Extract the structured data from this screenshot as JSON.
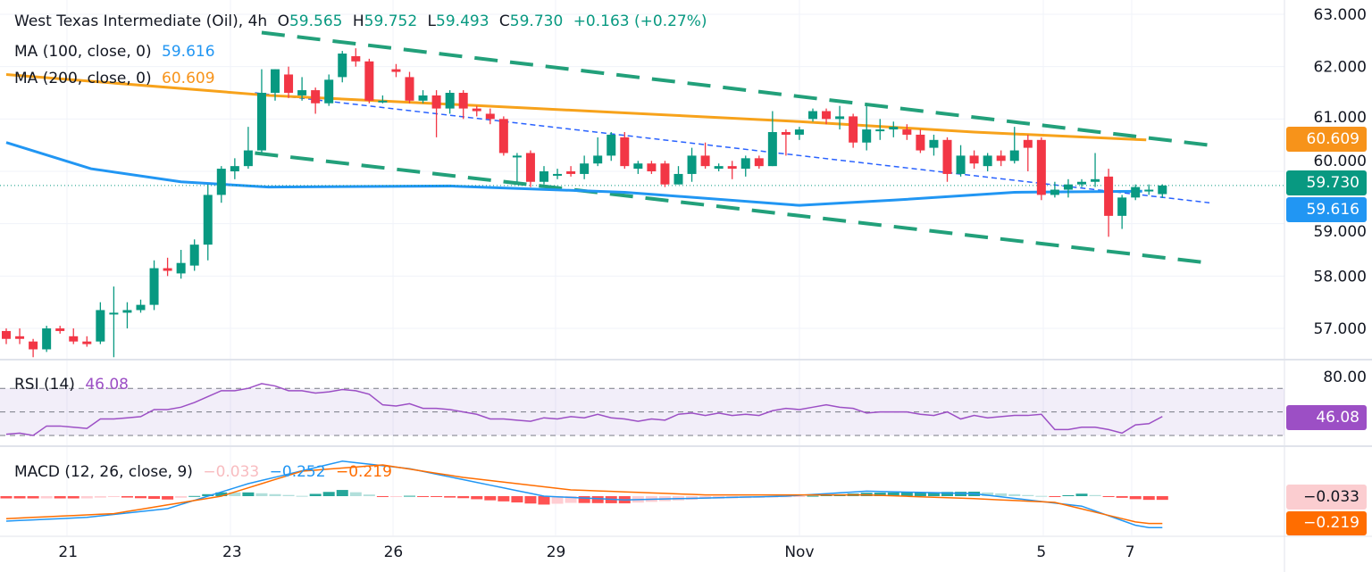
{
  "header": {
    "symbol": "West Texas Intermediate (Oil), 4h",
    "o_label": "O",
    "o": "59.565",
    "h_label": "H",
    "h": "59.752",
    "l_label": "L",
    "l": "59.493",
    "c_label": "C",
    "c": "59.730",
    "change": "+0.163 (+0.27%)"
  },
  "ma100": {
    "label": "MA (100, close, 0)",
    "value": "59.616",
    "color": "#2196f3"
  },
  "ma200": {
    "label": "MA (200, close, 0)",
    "value": "60.609",
    "color": "#ff9800"
  },
  "rsi": {
    "label": "RSI (14)",
    "value": "46.08",
    "axis_label": "80.00",
    "color": "#9c4fc5"
  },
  "macd": {
    "label": "MACD (12, 26, close, 9)",
    "hist": "−0.033",
    "macd": "−0.252",
    "signal": "−0.219"
  },
  "badges": {
    "ma200": "60.609",
    "last": "59.730",
    "ma100": "59.616",
    "rsi": "46.08",
    "hist": "−0.033",
    "signal": "−0.219"
  },
  "colors": {
    "up": "#089981",
    "down": "#f23645",
    "channel": "#22a07a",
    "mid": "#2962ff"
  },
  "chart_data": {
    "type": "candlestick",
    "title": "West Texas Intermediate (Oil), 4h",
    "ylim": [
      56.5,
      63.2
    ],
    "y_ticks": [
      "63.000",
      "62.000",
      "61.000",
      "60.000",
      "59.000",
      "58.000",
      "57.000"
    ],
    "y_tick_values": [
      63,
      62,
      61,
      60,
      59,
      58,
      57
    ],
    "x_ticks": [
      {
        "label": "21",
        "bar": 4.6
      },
      {
        "label": "23",
        "bar": 16.8
      },
      {
        "label": "26",
        "bar": 28.8
      },
      {
        "label": "29",
        "bar": 40.9
      },
      {
        "label": "Nov",
        "bar": 59
      },
      {
        "label": "5",
        "bar": 77
      },
      {
        "label": "7",
        "bar": 83.6
      }
    ],
    "ohlc": [
      [
        56.95,
        57.0,
        56.7,
        56.8
      ],
      [
        56.85,
        57.0,
        56.7,
        56.8
      ],
      [
        56.75,
        56.8,
        56.45,
        56.6
      ],
      [
        56.6,
        57.05,
        56.55,
        57.0
      ],
      [
        57.0,
        57.05,
        56.9,
        56.95
      ],
      [
        56.85,
        57.0,
        56.7,
        56.75
      ],
      [
        56.75,
        56.85,
        56.65,
        56.7
      ],
      [
        56.75,
        57.5,
        56.7,
        57.35
      ],
      [
        57.3,
        57.8,
        56.45,
        57.3
      ],
      [
        57.3,
        57.5,
        57.0,
        57.35
      ],
      [
        57.35,
        57.55,
        57.3,
        57.45
      ],
      [
        57.45,
        58.3,
        57.35,
        58.15
      ],
      [
        58.15,
        58.35,
        58.0,
        58.1
      ],
      [
        58.05,
        58.5,
        57.95,
        58.25
      ],
      [
        58.2,
        58.7,
        58.1,
        58.6
      ],
      [
        58.6,
        59.75,
        58.3,
        59.55
      ],
      [
        59.55,
        60.1,
        59.4,
        60.05
      ],
      [
        60.0,
        60.25,
        59.85,
        60.1
      ],
      [
        60.1,
        60.85,
        60.05,
        60.4
      ],
      [
        60.4,
        61.95,
        60.35,
        61.5
      ],
      [
        61.5,
        61.95,
        61.35,
        61.95
      ],
      [
        61.85,
        62.0,
        61.4,
        61.5
      ],
      [
        61.45,
        61.8,
        61.35,
        61.55
      ],
      [
        61.55,
        61.6,
        61.1,
        61.3
      ],
      [
        61.3,
        61.85,
        61.25,
        61.75
      ],
      [
        61.8,
        62.3,
        61.7,
        62.25
      ],
      [
        62.2,
        62.35,
        62.0,
        62.1
      ],
      [
        62.1,
        62.15,
        61.3,
        61.35
      ],
      [
        61.35,
        61.45,
        61.3,
        61.35
      ],
      [
        61.95,
        62.05,
        61.8,
        61.9
      ],
      [
        61.8,
        61.9,
        61.3,
        61.35
      ],
      [
        61.35,
        61.55,
        61.3,
        61.45
      ],
      [
        61.45,
        61.55,
        60.65,
        61.2
      ],
      [
        61.2,
        61.55,
        61.1,
        61.5
      ],
      [
        61.5,
        61.55,
        61.0,
        61.2
      ],
      [
        61.2,
        61.25,
        61.05,
        61.15
      ],
      [
        61.1,
        61.2,
        60.9,
        61.0
      ],
      [
        61.0,
        61.05,
        60.3,
        60.35
      ],
      [
        60.3,
        60.35,
        59.8,
        60.3
      ],
      [
        60.35,
        60.4,
        59.7,
        59.8
      ],
      [
        59.8,
        60.1,
        59.75,
        60.0
      ],
      [
        59.95,
        60.05,
        59.85,
        59.95
      ],
      [
        60.0,
        60.1,
        59.9,
        59.95
      ],
      [
        59.95,
        60.3,
        59.85,
        60.15
      ],
      [
        60.15,
        60.65,
        60.1,
        60.3
      ],
      [
        60.3,
        60.75,
        60.2,
        60.7
      ],
      [
        60.65,
        60.75,
        60.05,
        60.1
      ],
      [
        60.05,
        60.2,
        59.95,
        60.15
      ],
      [
        60.15,
        60.2,
        59.95,
        60.0
      ],
      [
        60.15,
        60.2,
        59.7,
        59.75
      ],
      [
        59.75,
        60.1,
        59.75,
        59.95
      ],
      [
        59.95,
        60.45,
        59.8,
        60.3
      ],
      [
        60.3,
        60.55,
        60.05,
        60.1
      ],
      [
        60.05,
        60.15,
        60.0,
        60.1
      ],
      [
        60.1,
        60.2,
        59.85,
        60.05
      ],
      [
        60.05,
        60.3,
        59.9,
        60.25
      ],
      [
        60.25,
        60.3,
        60.05,
        60.1
      ],
      [
        60.1,
        61.15,
        60.1,
        60.75
      ],
      [
        60.75,
        60.8,
        60.3,
        60.7
      ],
      [
        60.7,
        60.85,
        60.6,
        60.8
      ],
      [
        61.0,
        61.2,
        60.95,
        61.15
      ],
      [
        61.15,
        61.2,
        60.9,
        61.0
      ],
      [
        61.0,
        61.25,
        60.8,
        61.05
      ],
      [
        61.05,
        61.1,
        60.45,
        60.55
      ],
      [
        60.55,
        61.25,
        60.4,
        60.8
      ],
      [
        60.8,
        61.0,
        60.6,
        60.8
      ],
      [
        60.8,
        60.95,
        60.65,
        60.85
      ],
      [
        60.8,
        60.9,
        60.6,
        60.7
      ],
      [
        60.7,
        60.8,
        60.35,
        60.4
      ],
      [
        60.45,
        60.7,
        60.3,
        60.6
      ],
      [
        60.6,
        60.65,
        59.8,
        59.95
      ],
      [
        59.95,
        60.5,
        59.9,
        60.3
      ],
      [
        60.3,
        60.4,
        60.05,
        60.15
      ],
      [
        60.1,
        60.35,
        60.0,
        60.3
      ],
      [
        60.3,
        60.4,
        60.1,
        60.2
      ],
      [
        60.2,
        60.85,
        60.15,
        60.4
      ],
      [
        60.6,
        60.7,
        60.0,
        60.45
      ],
      [
        60.6,
        60.65,
        59.45,
        59.55
      ],
      [
        59.55,
        59.8,
        59.5,
        59.65
      ],
      [
        59.65,
        59.85,
        59.5,
        59.75
      ],
      [
        59.75,
        59.85,
        59.7,
        59.8
      ],
      [
        59.8,
        60.35,
        59.7,
        59.85
      ],
      [
        59.9,
        60.05,
        58.75,
        59.15
      ],
      [
        59.15,
        59.55,
        58.9,
        59.5
      ],
      [
        59.5,
        59.75,
        59.45,
        59.7
      ],
      [
        59.65,
        59.75,
        59.55,
        59.65
      ],
      [
        59.565,
        59.752,
        59.493,
        59.73
      ]
    ],
    "ma100_points": [
      [
        0,
        60.55
      ],
      [
        6.3,
        60.05
      ],
      [
        13,
        59.8
      ],
      [
        19.5,
        59.7
      ],
      [
        33,
        59.72
      ],
      [
        46,
        59.6
      ],
      [
        59,
        59.35
      ],
      [
        66,
        59.45
      ],
      [
        75,
        59.6
      ],
      [
        84.5,
        59.62
      ]
    ],
    "ma200_points": [
      [
        0,
        61.85
      ],
      [
        19.5,
        61.45
      ],
      [
        39.5,
        61.2
      ],
      [
        59,
        60.95
      ],
      [
        72,
        60.75
      ],
      [
        84.8,
        60.6
      ]
    ],
    "channel_upper": [
      [
        19,
        62.65
      ],
      [
        89.5,
        60.5
      ]
    ],
    "channel_lower": [
      [
        18.5,
        60.35
      ],
      [
        89.5,
        58.25
      ]
    ],
    "channel_mid": [
      [
        18.5,
        61.5
      ],
      [
        89.5,
        59.4
      ]
    ],
    "last_price": 59.73,
    "rsi_levels": [
      70,
      50,
      30
    ],
    "rsi_values": [
      31,
      32,
      30,
      38,
      38,
      37,
      36,
      44,
      44,
      45,
      46,
      52,
      52,
      54,
      58,
      63,
      68,
      68,
      70,
      74,
      72,
      68,
      68,
      66,
      67,
      69,
      68,
      65,
      56,
      55,
      57,
      53,
      53,
      52,
      50,
      48,
      44,
      44,
      43,
      42,
      45,
      44,
      46,
      45,
      48,
      45,
      44,
      42,
      44,
      43,
      48,
      49,
      47,
      49,
      47,
      48,
      47,
      51,
      53,
      52,
      54,
      56,
      54,
      53,
      49,
      50,
      50,
      50,
      48,
      47,
      50,
      44,
      47,
      45,
      46,
      47,
      47,
      48,
      35,
      35,
      37,
      37,
      35,
      32,
      39,
      40,
      46.08
    ],
    "macd_points": [
      [
        0,
        -0.2
      ],
      [
        6,
        -0.17
      ],
      [
        12,
        -0.1
      ],
      [
        18,
        0.1
      ],
      [
        25,
        0.28
      ],
      [
        30,
        0.22
      ],
      [
        40,
        0.0
      ],
      [
        46,
        -0.03
      ],
      [
        58,
        0.0
      ],
      [
        64,
        0.04
      ],
      [
        72,
        0.02
      ],
      [
        76,
        -0.03
      ],
      [
        80,
        -0.08
      ],
      [
        84.5,
        -0.252
      ]
    ],
    "signal_points": [
      [
        0,
        -0.18
      ],
      [
        8,
        -0.14
      ],
      [
        16,
        0.0
      ],
      [
        22,
        0.2
      ],
      [
        28,
        0.25
      ],
      [
        34,
        0.15
      ],
      [
        42,
        0.05
      ],
      [
        52,
        0.01
      ],
      [
        64,
        0.01
      ],
      [
        72,
        -0.02
      ],
      [
        78,
        -0.05
      ],
      [
        84.5,
        -0.219
      ]
    ]
  }
}
